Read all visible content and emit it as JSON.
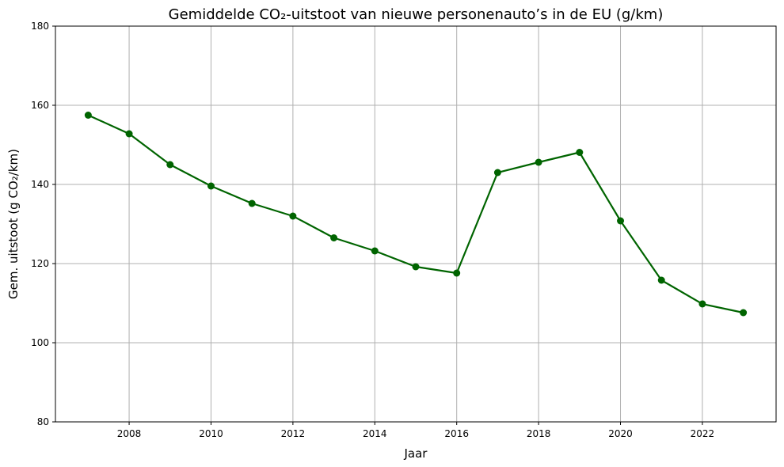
{
  "chart_data": {
    "type": "line",
    "title": "Gemiddelde CO₂-uitstoot van nieuwe personenauto’s in de EU (g/km)",
    "xlabel": "Jaar",
    "ylabel": "Gem. uitstoot (g CO₂/km)",
    "xlim": [
      2006.2,
      2023.8
    ],
    "ylim": [
      80,
      180
    ],
    "x_ticks": [
      2008,
      2010,
      2012,
      2014,
      2016,
      2018,
      2020,
      2022
    ],
    "y_ticks": [
      80,
      100,
      120,
      140,
      160,
      180
    ],
    "grid": true,
    "series": [
      {
        "color": "#006400",
        "marker": "circle",
        "x": [
          2007,
          2008,
          2009,
          2010,
          2011,
          2012,
          2013,
          2014,
          2015,
          2016,
          2017,
          2018,
          2019,
          2020,
          2021,
          2022,
          2023
        ],
        "values": [
          157.5,
          152.8,
          145.0,
          139.6,
          135.2,
          132.0,
          126.5,
          123.2,
          119.2,
          117.6,
          143.0,
          145.6,
          148.1,
          130.8,
          115.8,
          109.8,
          107.6
        ]
      }
    ]
  }
}
